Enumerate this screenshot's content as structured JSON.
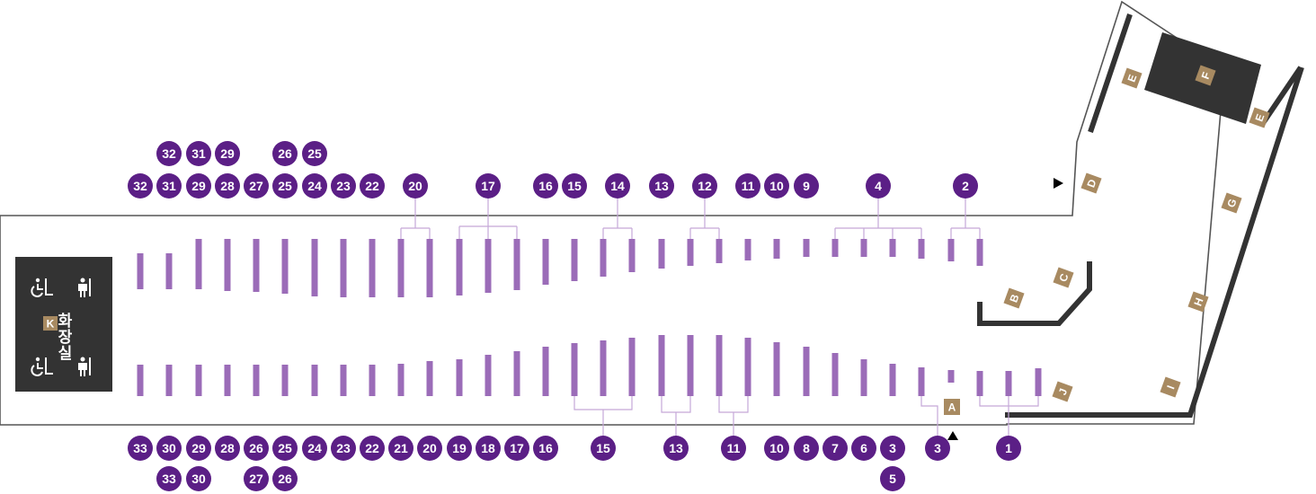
{
  "colors": {
    "bay": "#9b6cb8",
    "badge": "#5b1f86",
    "tag": "#a88a61",
    "wall": "#333333",
    "room": "#333333",
    "outline": "#555555",
    "connector": "#c5a8d8"
  },
  "restroom": {
    "label": "화장실",
    "tag": "K",
    "icons": [
      "accessible-icon",
      "restroom-icon",
      "accessible-icon",
      "restroom-icon"
    ]
  },
  "zone_tags": [
    "A",
    "B",
    "C",
    "D",
    "E",
    "F",
    "E",
    "G",
    "H",
    "I",
    "J"
  ],
  "top_gate_numbers": [
    "32",
    "31",
    "29",
    "28",
    "27",
    "25",
    "24",
    "23",
    "22",
    "20",
    "17",
    "16",
    "15",
    "14",
    "13",
    "12",
    "11",
    "10",
    "9",
    "4",
    "2"
  ],
  "top_extra_numbers": [
    "32",
    "31",
    "29",
    "26",
    "25"
  ],
  "bottom_gate_numbers": [
    "33",
    "30",
    "29",
    "28",
    "26",
    "25",
    "24",
    "23",
    "22",
    "21",
    "20",
    "19",
    "18",
    "17",
    "16",
    "15",
    "13",
    "11",
    "10",
    "8",
    "7",
    "6",
    "3",
    "3",
    "1"
  ],
  "bottom_extra_numbers": [
    "33",
    "30",
    "27",
    "26",
    "5"
  ],
  "direction_markers": [
    "entrance-arrow-top",
    "entrance-arrow-bottom"
  ]
}
